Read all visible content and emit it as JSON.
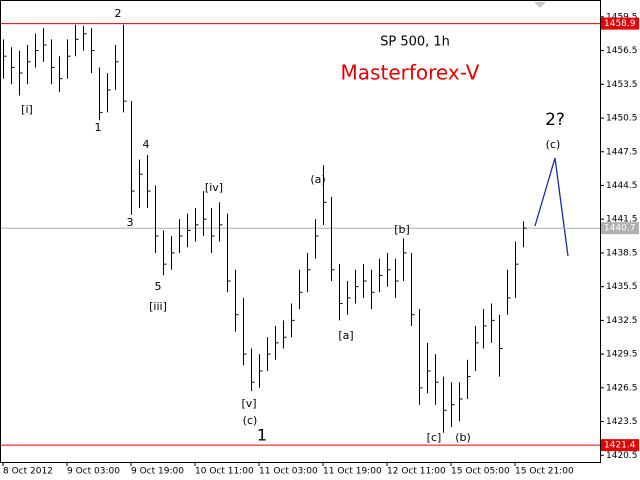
{
  "chart_data": {
    "type": "hlc",
    "title": "SP 500, 1h",
    "subtitle": "Masterforex-V",
    "categories": [
      "8 Oct 2012",
      null,
      null,
      null,
      null,
      null,
      null,
      null,
      "9 Oct 03:00",
      null,
      null,
      null,
      null,
      null,
      null,
      null,
      "9 Oct 19:00",
      null,
      null,
      null,
      null,
      null,
      null,
      null,
      "10 Oct 11:00",
      null,
      null,
      null,
      null,
      null,
      null,
      null,
      "11 Oct 03:00",
      null,
      null,
      null,
      null,
      null,
      null,
      null,
      "11 Oct 19:00",
      null,
      null,
      null,
      null,
      null,
      null,
      null,
      "12 Oct 11:00",
      null,
      null,
      null,
      null,
      null,
      null,
      null,
      "15 Oct 05:00",
      null,
      null,
      null,
      null,
      null,
      null,
      null,
      "15 Oct 21:00",
      null
    ],
    "high": [
      1457.5,
      1456.8,
      1456.5,
      1457,
      1458,
      1458.5,
      1457.5,
      1456,
      1457.5,
      1458.8,
      1458.7,
      1458.5,
      1455,
      1454.5,
      1457,
      1458.8,
      1452,
      1446.8,
      1447.2,
      1444.5,
      1440.5,
      1440,
      1441.5,
      1442,
      1442.5,
      1444,
      1442.5,
      1443,
      1442,
      1437,
      1434.5,
      1430,
      1429.5,
      1431,
      1432,
      1432.5,
      1434,
      1437,
      1438.5,
      1441.5,
      1446.3,
      1443.5,
      1437.5,
      1436,
      1437,
      1437.5,
      1437,
      1438,
      1438.5,
      1438,
      1439.8,
      1438.5,
      1433.5,
      1430.5,
      1429.5,
      1427.5,
      1427,
      1427,
      1429,
      1432,
      1433.5,
      1434,
      1433,
      1437,
      1439.5,
      1441.3
    ],
    "low": [
      1454,
      1453.5,
      1452.5,
      1453.5,
      1455,
      1455.5,
      1453.5,
      1452.8,
      1454,
      1456,
      1456.5,
      1454.5,
      1450.3,
      1451,
      1453,
      1451,
      1441.9,
      1442.5,
      1442.5,
      1438.5,
      1436.5,
      1437,
      1438.5,
      1439,
      1439.5,
      1440,
      1438.5,
      1439.5,
      1435,
      1431.5,
      1428.5,
      1426.2,
      1426.5,
      1428,
      1429,
      1430,
      1431,
      1433.5,
      1435,
      1438,
      1441,
      1436,
      1432.5,
      1433,
      1434,
      1434.5,
      1433.5,
      1435,
      1435.5,
      1434.5,
      1436,
      1432,
      1425,
      1426,
      1425,
      1422.5,
      1423,
      1423.5,
      1425.5,
      1428,
      1430,
      1430.5,
      1427.5,
      1433,
      1434.5,
      1439
    ],
    "close": [
      1456,
      1455,
      1454.5,
      1455.5,
      1456.5,
      1457,
      1455,
      1454,
      1456,
      1457.5,
      1458,
      1456.5,
      1451,
      1453,
      1455.5,
      1452,
      1444,
      1445.5,
      1444,
      1440,
      1437.5,
      1438.5,
      1440,
      1440.5,
      1441,
      1441.5,
      1440,
      1441,
      1436,
      1433,
      1429.5,
      1427,
      1428,
      1429.5,
      1430.5,
      1431,
      1432.5,
      1435,
      1437,
      1440,
      1443,
      1437,
      1434,
      1434.5,
      1435.5,
      1436,
      1435,
      1436.5,
      1437,
      1436,
      1438.5,
      1433,
      1426.5,
      1428,
      1427,
      1424.5,
      1425,
      1425.5,
      1427.5,
      1430.5,
      1432,
      1432.5,
      1430,
      1434.5,
      1437.5,
      1440.7
    ],
    "color": "#000000",
    "ylim": [
      1419.9,
      1461.0
    ],
    "yticks": [
      1420.5,
      1423.5,
      1426.5,
      1429.5,
      1432.5,
      1435.5,
      1438.5,
      1441.5,
      1444.5,
      1447.5,
      1450.5,
      1453.5,
      1456.5,
      1459.5
    ],
    "levels": [
      {
        "value": 1458.9,
        "color": "#e00000"
      },
      {
        "value": 1421.4,
        "color": "#e00000"
      },
      {
        "value": 1440.7,
        "color": "#b0b0b0"
      }
    ],
    "annotations": [
      "[i]",
      "2",
      "1",
      "4",
      "3",
      "5",
      "[iii]",
      "[iv]",
      "(a)",
      "[v]",
      "(c)",
      "1",
      "[a]",
      "[b]",
      "[c]",
      "(b)",
      "(c)",
      "2?"
    ]
  }
}
